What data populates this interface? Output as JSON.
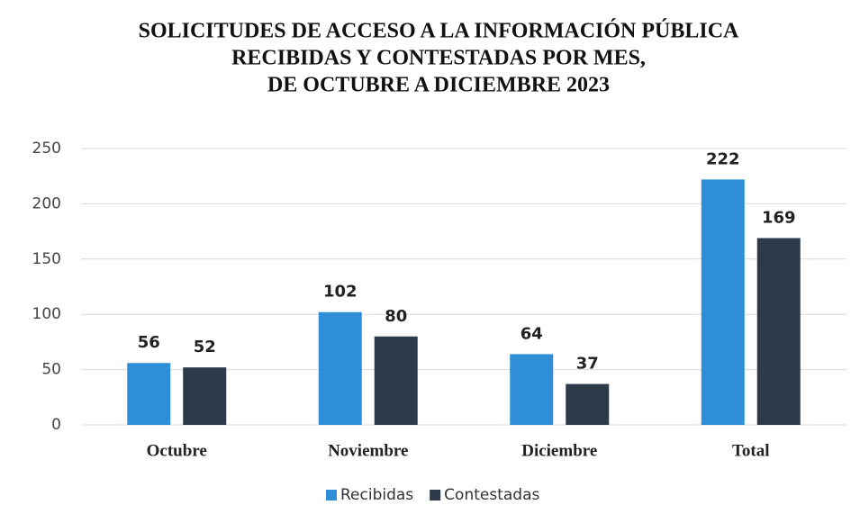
{
  "chart_data": {
    "type": "bar",
    "title": [
      "SOLICITUDES DE ACCESO A LA INFORMACIÓN PÚBLICA",
      "RECIBIDAS Y CONTESTADAS POR MES,",
      "DE OCTUBRE A DICIEMBRE 2023"
    ],
    "categories": [
      "Octubre",
      "Noviembre",
      "Diciembre",
      "Total"
    ],
    "series": [
      {
        "name": "Recibidas",
        "color": "#2e8fd6",
        "values": [
          56,
          102,
          64,
          222
        ]
      },
      {
        "name": "Contestadas",
        "color": "#2c3a4a",
        "values": [
          52,
          80,
          37,
          169
        ]
      }
    ],
    "ylim": [
      0,
      250
    ],
    "yticks": [
      0,
      50,
      100,
      150,
      200,
      250
    ],
    "grid": true,
    "legend": "bottom"
  }
}
